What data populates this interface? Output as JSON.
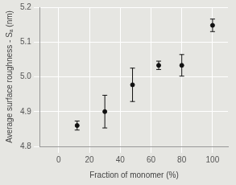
{
  "chart_data": {
    "type": "scatter",
    "x_label": "Fraction of monomer (%)",
    "y_label": "Average surface roughness - Sₐ (nm)",
    "x": [
      12,
      30,
      48,
      65,
      80,
      100
    ],
    "values": [
      4.86,
      4.9,
      4.977,
      5.033,
      5.033,
      5.148
    ],
    "errors": [
      0.013,
      0.047,
      0.048,
      0.012,
      0.031,
      0.018
    ],
    "color": "#111111",
    "marker": "circle",
    "xlim": [
      -12,
      110
    ],
    "xticks": [
      0,
      20,
      40,
      60,
      80,
      100
    ],
    "ylim": [
      4.8,
      5.2
    ],
    "yticks": [
      4.8,
      4.9,
      {
        "value": 5,
        "label": "5.0"
      },
      5.1,
      5.2
    ],
    "grid": true
  }
}
